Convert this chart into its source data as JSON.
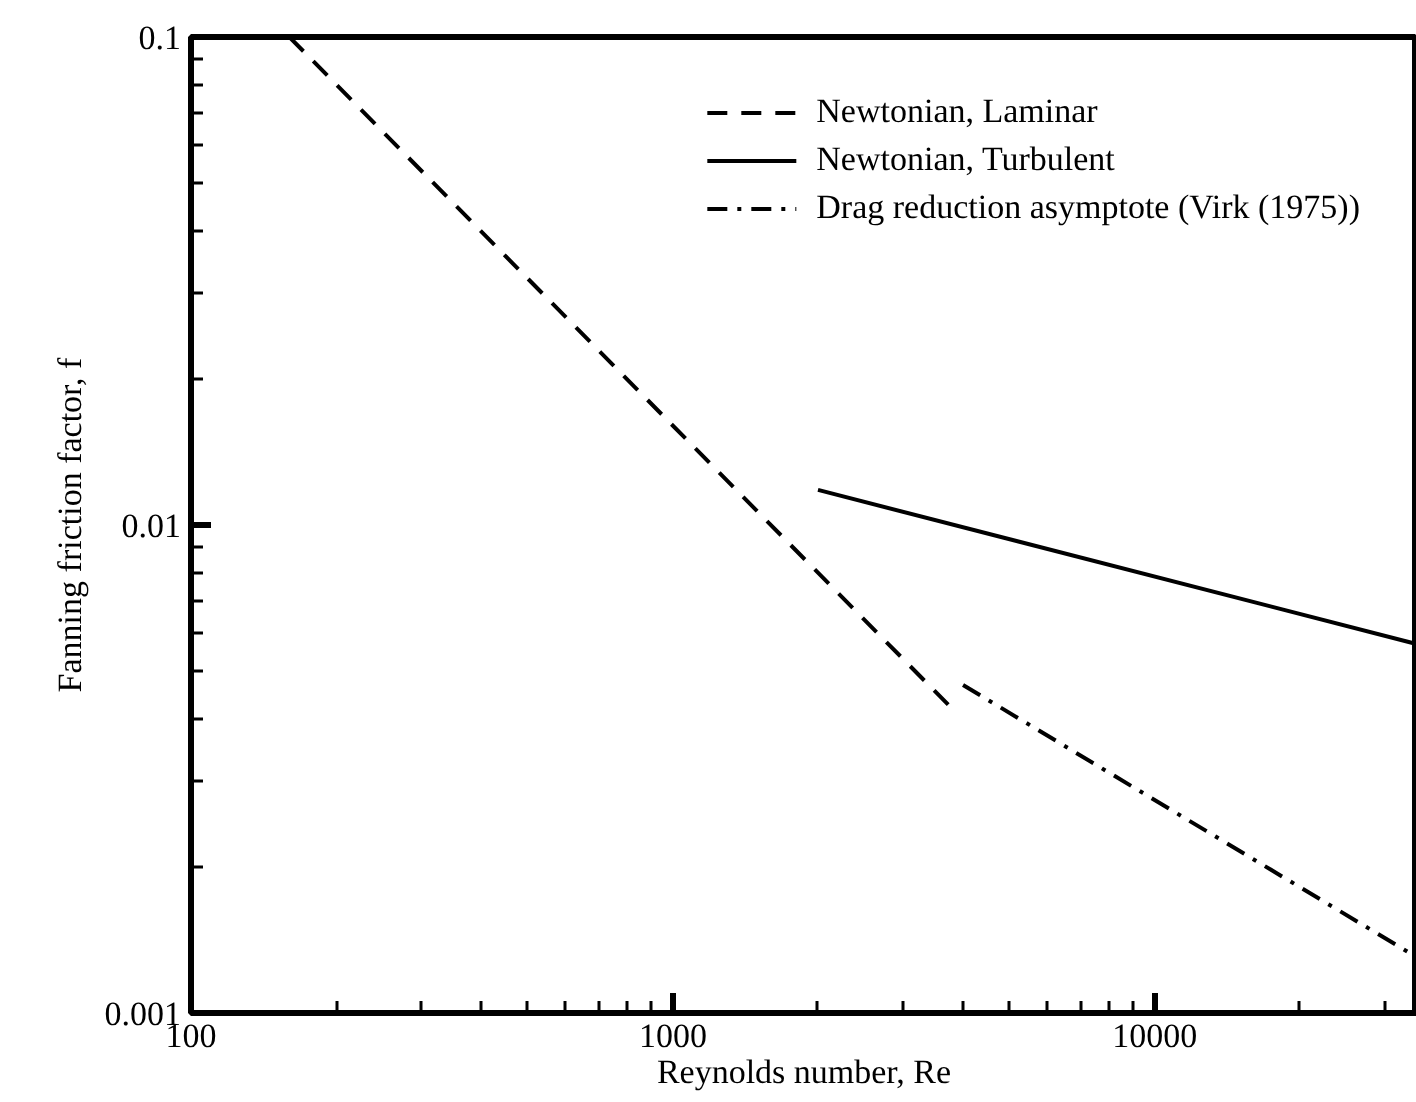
{
  "chart_data": {
    "type": "line",
    "xlabel": "Reynolds number, Re",
    "ylabel": "Fanning friction factor, f",
    "log": "xy",
    "xlim": [
      100,
      35000
    ],
    "ylim": [
      0.001,
      0.1
    ],
    "xticks": [
      100,
      1000,
      10000
    ],
    "yticks": [
      0.001,
      0.01,
      0.1
    ],
    "grid": false,
    "legend": "top right",
    "series": [
      {
        "name": "Newtonian, Laminar",
        "color": "#000000",
        "line_style": "dashed",
        "x": [
          160,
          3800
        ],
        "values": [
          0.1,
          0.0042
        ]
      },
      {
        "name": "Newtonian, Turbulent",
        "color": "#000000",
        "line_style": "solid",
        "x": [
          2000,
          35000
        ],
        "values": [
          0.0118,
          0.0057
        ]
      },
      {
        "name": "Drag reduction asymptote (Virk (1975))",
        "color": "#000000",
        "line_style": "dashdot",
        "x": [
          4000,
          35000
        ],
        "values": [
          0.0047,
          0.0013
        ]
      }
    ]
  }
}
